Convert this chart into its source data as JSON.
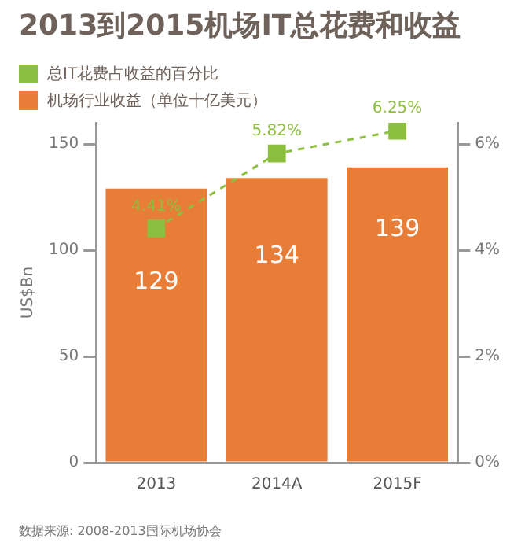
{
  "chart_data": {
    "type": "bar",
    "title": "2013到2015机场IT总花费和收益",
    "categories": [
      "2013",
      "2014A",
      "2015F"
    ],
    "series": [
      {
        "name": "总IT花费占收益的百分比",
        "type": "line",
        "axis": "y2",
        "color": "#8cbf3f",
        "values": [
          4.41,
          5.82,
          6.25
        ],
        "value_labels": [
          "4.41%",
          "5.82%",
          "6.25%"
        ],
        "marker": "square",
        "line_style": "dashed"
      },
      {
        "name": "机场行业收益（单位十亿美元）",
        "color": "#e87d37",
        "values": [
          129,
          134,
          139
        ],
        "value_labels": [
          "129",
          "134",
          "139"
        ]
      }
    ],
    "ylabel": "US$Bn",
    "ylim": [
      0,
      160
    ],
    "yticks": [
      0,
      50,
      100,
      150
    ],
    "y2lim": [
      0,
      6.4
    ],
    "y2ticks": [
      {
        "value": 0,
        "label": "0%"
      },
      {
        "value": 2,
        "label": "2%"
      },
      {
        "value": 4,
        "label": "4%"
      },
      {
        "value": 6,
        "label": "6%"
      }
    ],
    "grid": false,
    "legend": "top left",
    "annotations": [
      "数据来源: 2008-2013国际机场协会"
    ]
  }
}
